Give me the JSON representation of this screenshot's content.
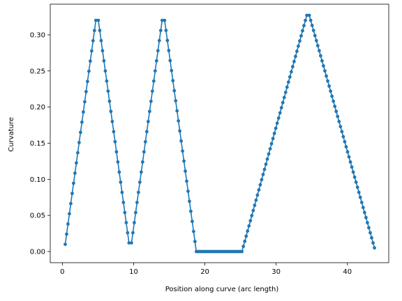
{
  "chart_data": {
    "type": "line",
    "title": "",
    "xlabel": "Position along curve (arc length)",
    "ylabel": "Curvature",
    "xlim": [
      -1.7,
      45.8
    ],
    "ylim": [
      -0.0154,
      0.3424
    ],
    "xticks": [
      0,
      10,
      20,
      30,
      40
    ],
    "xtick_labels": [
      "0",
      "10",
      "20",
      "30",
      "40"
    ],
    "yticks": [
      0.0,
      0.05,
      0.1,
      0.15,
      0.2,
      0.25,
      0.3
    ],
    "ytick_labels": [
      "0.00",
      "0.05",
      "0.10",
      "0.15",
      "0.20",
      "0.25",
      "0.30"
    ],
    "grid": false,
    "legend": null,
    "series": [
      {
        "color": "#1f77b4",
        "marker": "circle",
        "segments": [
          {
            "x_start": 0.4,
            "x_end": 4.7,
            "n": 23,
            "y_start": 0.01,
            "y_end": 0.32
          },
          {
            "x_start": 5.05,
            "x_end": 9.35,
            "n": 23,
            "y_start": 0.32,
            "y_end": 0.012
          },
          {
            "x_start": 9.7,
            "x_end": 14.0,
            "n": 23,
            "y_start": 0.012,
            "y_end": 0.32
          },
          {
            "x_start": 14.35,
            "x_end": 18.8,
            "n": 24,
            "y_start": 0.32,
            "y_end": 0.0
          },
          {
            "x_start": 19.0,
            "x_end": 25.0,
            "n": 31,
            "y_start": 0.0,
            "y_end": 0.0
          },
          {
            "x_start": 25.2,
            "x_end": 34.3,
            "n": 47,
            "y_start": 0.0,
            "y_end": 0.327
          },
          {
            "x_start": 34.65,
            "x_end": 43.8,
            "n": 47,
            "y_start": 0.327,
            "y_end": 0.005
          }
        ]
      }
    ]
  }
}
